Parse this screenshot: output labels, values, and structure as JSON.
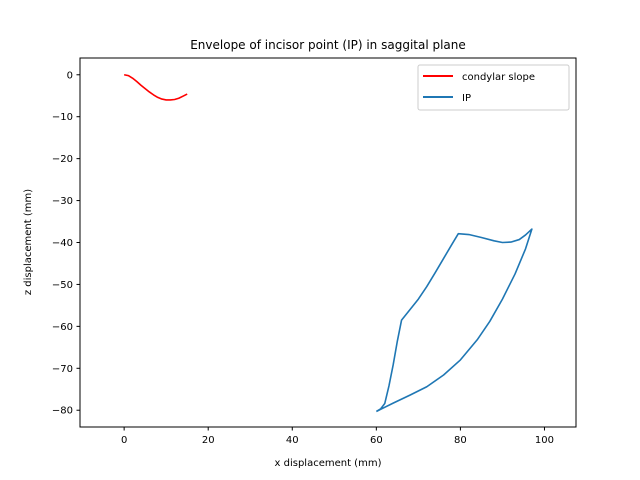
{
  "chart_data": {
    "type": "line",
    "title": "Envelope of incisor point (IP) in saggital plane",
    "xlabel": "x displacement (mm)",
    "ylabel": "z displacement (mm)",
    "xlim": [
      -10.5,
      107.5
    ],
    "ylim": [
      -84,
      4
    ],
    "xticks": [
      0,
      20,
      40,
      60,
      80,
      100
    ],
    "yticks": [
      0,
      -10,
      -20,
      -30,
      -40,
      -50,
      -60,
      -70,
      -80
    ],
    "xtick_labels": [
      "0",
      "20",
      "40",
      "60",
      "80",
      "100"
    ],
    "ytick_labels": [
      "0",
      "−10",
      "−20",
      "−30",
      "−40",
      "−50",
      "−60",
      "−70",
      "−80"
    ],
    "grid": false,
    "legend_position": "top-right",
    "series": [
      {
        "name": "condylar slope",
        "color": "#ff0000",
        "points": [
          [
            0,
            0
          ],
          [
            1,
            -0.2
          ],
          [
            2,
            -0.8
          ],
          [
            3,
            -1.6
          ],
          [
            4,
            -2.5
          ],
          [
            5,
            -3.3
          ],
          [
            6,
            -4.1
          ],
          [
            7,
            -4.8
          ],
          [
            8,
            -5.4
          ],
          [
            9,
            -5.8
          ],
          [
            10,
            -6.0
          ],
          [
            11,
            -6.0
          ],
          [
            12,
            -5.9
          ],
          [
            13,
            -5.6
          ],
          [
            14,
            -5.1
          ],
          [
            15,
            -4.6
          ]
        ]
      },
      {
        "name": "IP",
        "color": "#1f77b4",
        "points": [
          [
            60,
            -80.3
          ],
          [
            61,
            -79.7
          ],
          [
            62,
            -78.4
          ],
          [
            63,
            -74.2
          ],
          [
            64,
            -69.2
          ],
          [
            65,
            -63.5
          ],
          [
            66,
            -58.5
          ],
          [
            68,
            -56.0
          ],
          [
            70,
            -53.5
          ],
          [
            72,
            -50.5
          ],
          [
            74,
            -47.2
          ],
          [
            76,
            -43.8
          ],
          [
            78,
            -40.4
          ],
          [
            79.5,
            -37.9
          ],
          [
            82,
            -38.1
          ],
          [
            85,
            -38.8
          ],
          [
            88,
            -39.6
          ],
          [
            90,
            -40.0
          ],
          [
            92,
            -39.9
          ],
          [
            94,
            -39.3
          ],
          [
            95.5,
            -38.2
          ],
          [
            97,
            -36.8
          ],
          [
            95.5,
            -41.5
          ],
          [
            93,
            -47.5
          ],
          [
            90,
            -53.5
          ],
          [
            87,
            -58.8
          ],
          [
            84,
            -63.2
          ],
          [
            80,
            -68.0
          ],
          [
            76,
            -71.6
          ],
          [
            72,
            -74.4
          ],
          [
            68,
            -76.4
          ],
          [
            64,
            -78.3
          ],
          [
            60,
            -80.3
          ]
        ]
      }
    ]
  }
}
